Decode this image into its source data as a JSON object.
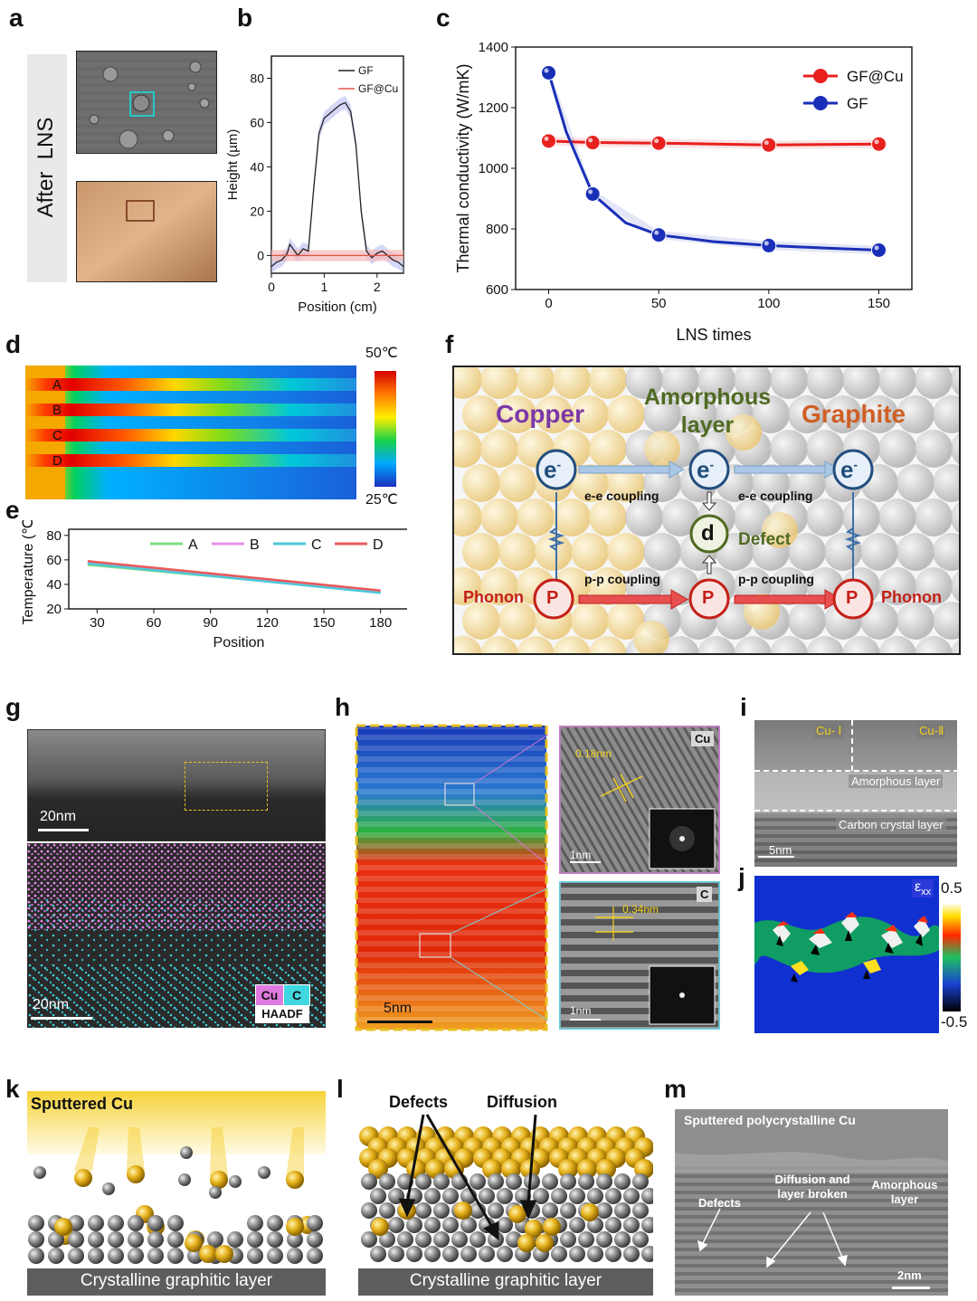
{
  "panels": {
    "a": "a",
    "b": "b",
    "c": "c",
    "d": "d",
    "e": "e",
    "f": "f",
    "g": "g",
    "h": "h",
    "i": "i",
    "j": "j",
    "k": "k",
    "l": "l",
    "m": "m"
  },
  "panel_a": {
    "side_label": "After  LNS"
  },
  "chart_data": [
    {
      "id": "b",
      "type": "line",
      "xlabel": "Position (cm)",
      "ylabel": "Height (µm)",
      "xlim": [
        0,
        2.5
      ],
      "ylim": [
        -8,
        90
      ],
      "xticks": [
        0,
        1,
        2
      ],
      "yticks": [
        0,
        20,
        40,
        60,
        80
      ],
      "legend": [
        "GF",
        "GF@Cu"
      ],
      "series": [
        {
          "name": "GF",
          "color": "#222222",
          "x": [
            0,
            0.1,
            0.2,
            0.3,
            0.35,
            0.5,
            0.6,
            0.7,
            0.8,
            0.9,
            1.0,
            1.1,
            1.2,
            1.3,
            1.4,
            1.5,
            1.6,
            1.7,
            1.8,
            1.9,
            2.0,
            2.1,
            2.2,
            2.3,
            2.4,
            2.5
          ],
          "y": [
            -5,
            -3,
            -2,
            1,
            5,
            0,
            3,
            2,
            30,
            55,
            62,
            64,
            66,
            68,
            69,
            65,
            50,
            20,
            2,
            -1,
            1,
            2,
            0,
            -2,
            -3,
            -5
          ]
        },
        {
          "name": "GF@Cu",
          "color": "#e0554a",
          "x": [
            0,
            2.5
          ],
          "y": [
            0,
            0
          ]
        }
      ]
    },
    {
      "id": "c",
      "type": "line",
      "xlabel": "LNS times",
      "ylabel": "Thermal conductivity (W/mK)",
      "xlim": [
        -15,
        165
      ],
      "ylim": [
        600,
        1400
      ],
      "xticks": [
        0,
        50,
        100,
        150
      ],
      "yticks": [
        600,
        800,
        1000,
        1200,
        1400
      ],
      "legend_position": "top-right",
      "series": [
        {
          "name": "GF@Cu",
          "color": "#e8201e",
          "x": [
            0,
            20,
            50,
            100,
            150
          ],
          "y": [
            1090,
            1085,
            1083,
            1077,
            1080
          ]
        },
        {
          "name": "GF",
          "color": "#1a2fb8",
          "x": [
            0,
            20,
            50,
            100,
            150
          ],
          "y": [
            1315,
            915,
            780,
            745,
            730
          ]
        }
      ]
    },
    {
      "id": "e",
      "type": "line",
      "xlabel": "Position",
      "ylabel": "Temperature (℃)",
      "xlim": [
        15,
        195
      ],
      "ylim": [
        20,
        85
      ],
      "xticks": [
        30,
        60,
        90,
        120,
        150,
        180
      ],
      "yticks": [
        20,
        40,
        60,
        80
      ],
      "legend_position": "top",
      "series": [
        {
          "name": "A",
          "color": "#7ddc80",
          "x": [
            25,
            180
          ],
          "y": [
            56,
            34
          ]
        },
        {
          "name": "B",
          "color": "#e890e8",
          "x": [
            25,
            180
          ],
          "y": [
            58,
            34
          ]
        },
        {
          "name": "C",
          "color": "#4cc8d8",
          "x": [
            25,
            180
          ],
          "y": [
            57,
            33
          ]
        },
        {
          "name": "D",
          "color": "#e85a5a",
          "x": [
            25,
            180
          ],
          "y": [
            59,
            35
          ]
        }
      ]
    }
  ],
  "panel_d": {
    "rows": [
      "A",
      "B",
      "C",
      "D"
    ],
    "scale_max": "50℃",
    "scale_min": "25℃"
  },
  "panel_f": {
    "copper": "Copper",
    "amorphous": "Amorphous\nlayer",
    "graphite": "Graphite",
    "e": "e",
    "p": "P",
    "d": "d",
    "defect": "Defect",
    "ee1": "e-e coupling",
    "ee2": "e-e coupling",
    "pp1": "p-p coupling",
    "pp2": "p-p coupling",
    "phonon_left": "Phonon",
    "phonon_right": "Phonon"
  },
  "panel_g": {
    "scale_top": "20nm",
    "scale_bottom": "20nm",
    "legend_cu": "Cu",
    "legend_c": "C",
    "legend_haadf": "HAADF"
  },
  "panel_h": {
    "scale": "5nm",
    "cu_tag": "Cu",
    "c_tag": "C",
    "d_cu": "0.18nm",
    "d_c": "0.34nm",
    "inset_scale_top": "1nm",
    "inset_scale_bottom": "1nm"
  },
  "panel_i": {
    "cu1": "Cu- Ⅰ",
    "cu2": "Cu-Ⅱ",
    "amorphous": "Amorphous layer",
    "carbon": "Carbon crystal layer",
    "scale": "5nm"
  },
  "panel_j": {
    "strain_label": "ε",
    "strain_sub": "xx",
    "scale_max": "0.5",
    "scale_min": "-0.5"
  },
  "panel_k": {
    "title": "Sputtered Cu",
    "base": "Crystalline graphitic layer"
  },
  "panel_l": {
    "defects": "Defects",
    "diffusion": "Diffusion",
    "base": "Crystalline graphitic layer"
  },
  "panel_m": {
    "title": "Sputtered polycrystalline Cu",
    "defects": "Defects",
    "diffusion": "Diffusion and\nlayer broken",
    "amorphous": "Amorphous\nlayer",
    "scale": "2nm"
  }
}
